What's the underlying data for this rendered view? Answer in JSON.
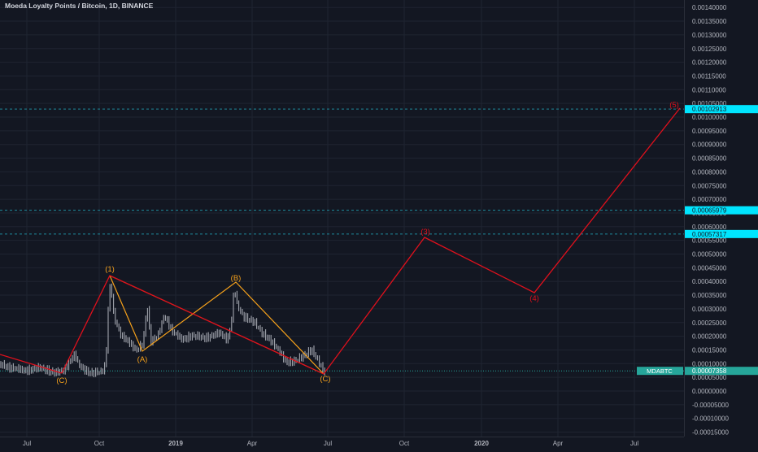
{
  "header": {
    "symbol_title": "Moeda Loyalty Points / Bitcoin, 1D, BINANCE"
  },
  "colors": {
    "background": "#131722",
    "grid": "#1f2431",
    "wave": "#e0101c",
    "pattern": "#f7a21b",
    "candles": "#b2b5be",
    "accent_cyan": "#00e5ff",
    "current_price": "#26a69a",
    "axis_text": "#b2b5be"
  },
  "price_axis": {
    "labels": [
      "0.00140000",
      "0.00135000",
      "0.00130000",
      "0.00125000",
      "0.00120000",
      "0.00115000",
      "0.00110000",
      "0.00105000",
      "0.00100000",
      "0.00095000",
      "0.00090000",
      "0.00085000",
      "0.00080000",
      "0.00075000",
      "0.00070000",
      "0.00065000",
      "0.00060000",
      "0.00055000",
      "0.00050000",
      "0.00045000",
      "0.00040000",
      "0.00035000",
      "0.00030000",
      "0.00025000",
      "0.00020000",
      "0.00015000",
      "0.00010000",
      "0.00005000",
      "0.00000000",
      "-0.00005000",
      "-0.00010000",
      "-0.00015000"
    ],
    "highlight_labels": [
      "0.00102913",
      "0.00065979",
      "0.00057317"
    ],
    "current_symbol": "MDABTC",
    "current_price": "0.00007358"
  },
  "time_axis": {
    "labels": [
      "Jul",
      "Oct",
      "2019",
      "Apr",
      "Jul",
      "Oct",
      "2020",
      "Apr",
      "Jul"
    ]
  },
  "wave_labels": {
    "w1": "(1)",
    "w3": "(3)",
    "w4": "(4)",
    "w5": "(5)",
    "a": "(A)",
    "b": "(B)",
    "c_left": "(C)",
    "c_right": "(C)"
  }
}
